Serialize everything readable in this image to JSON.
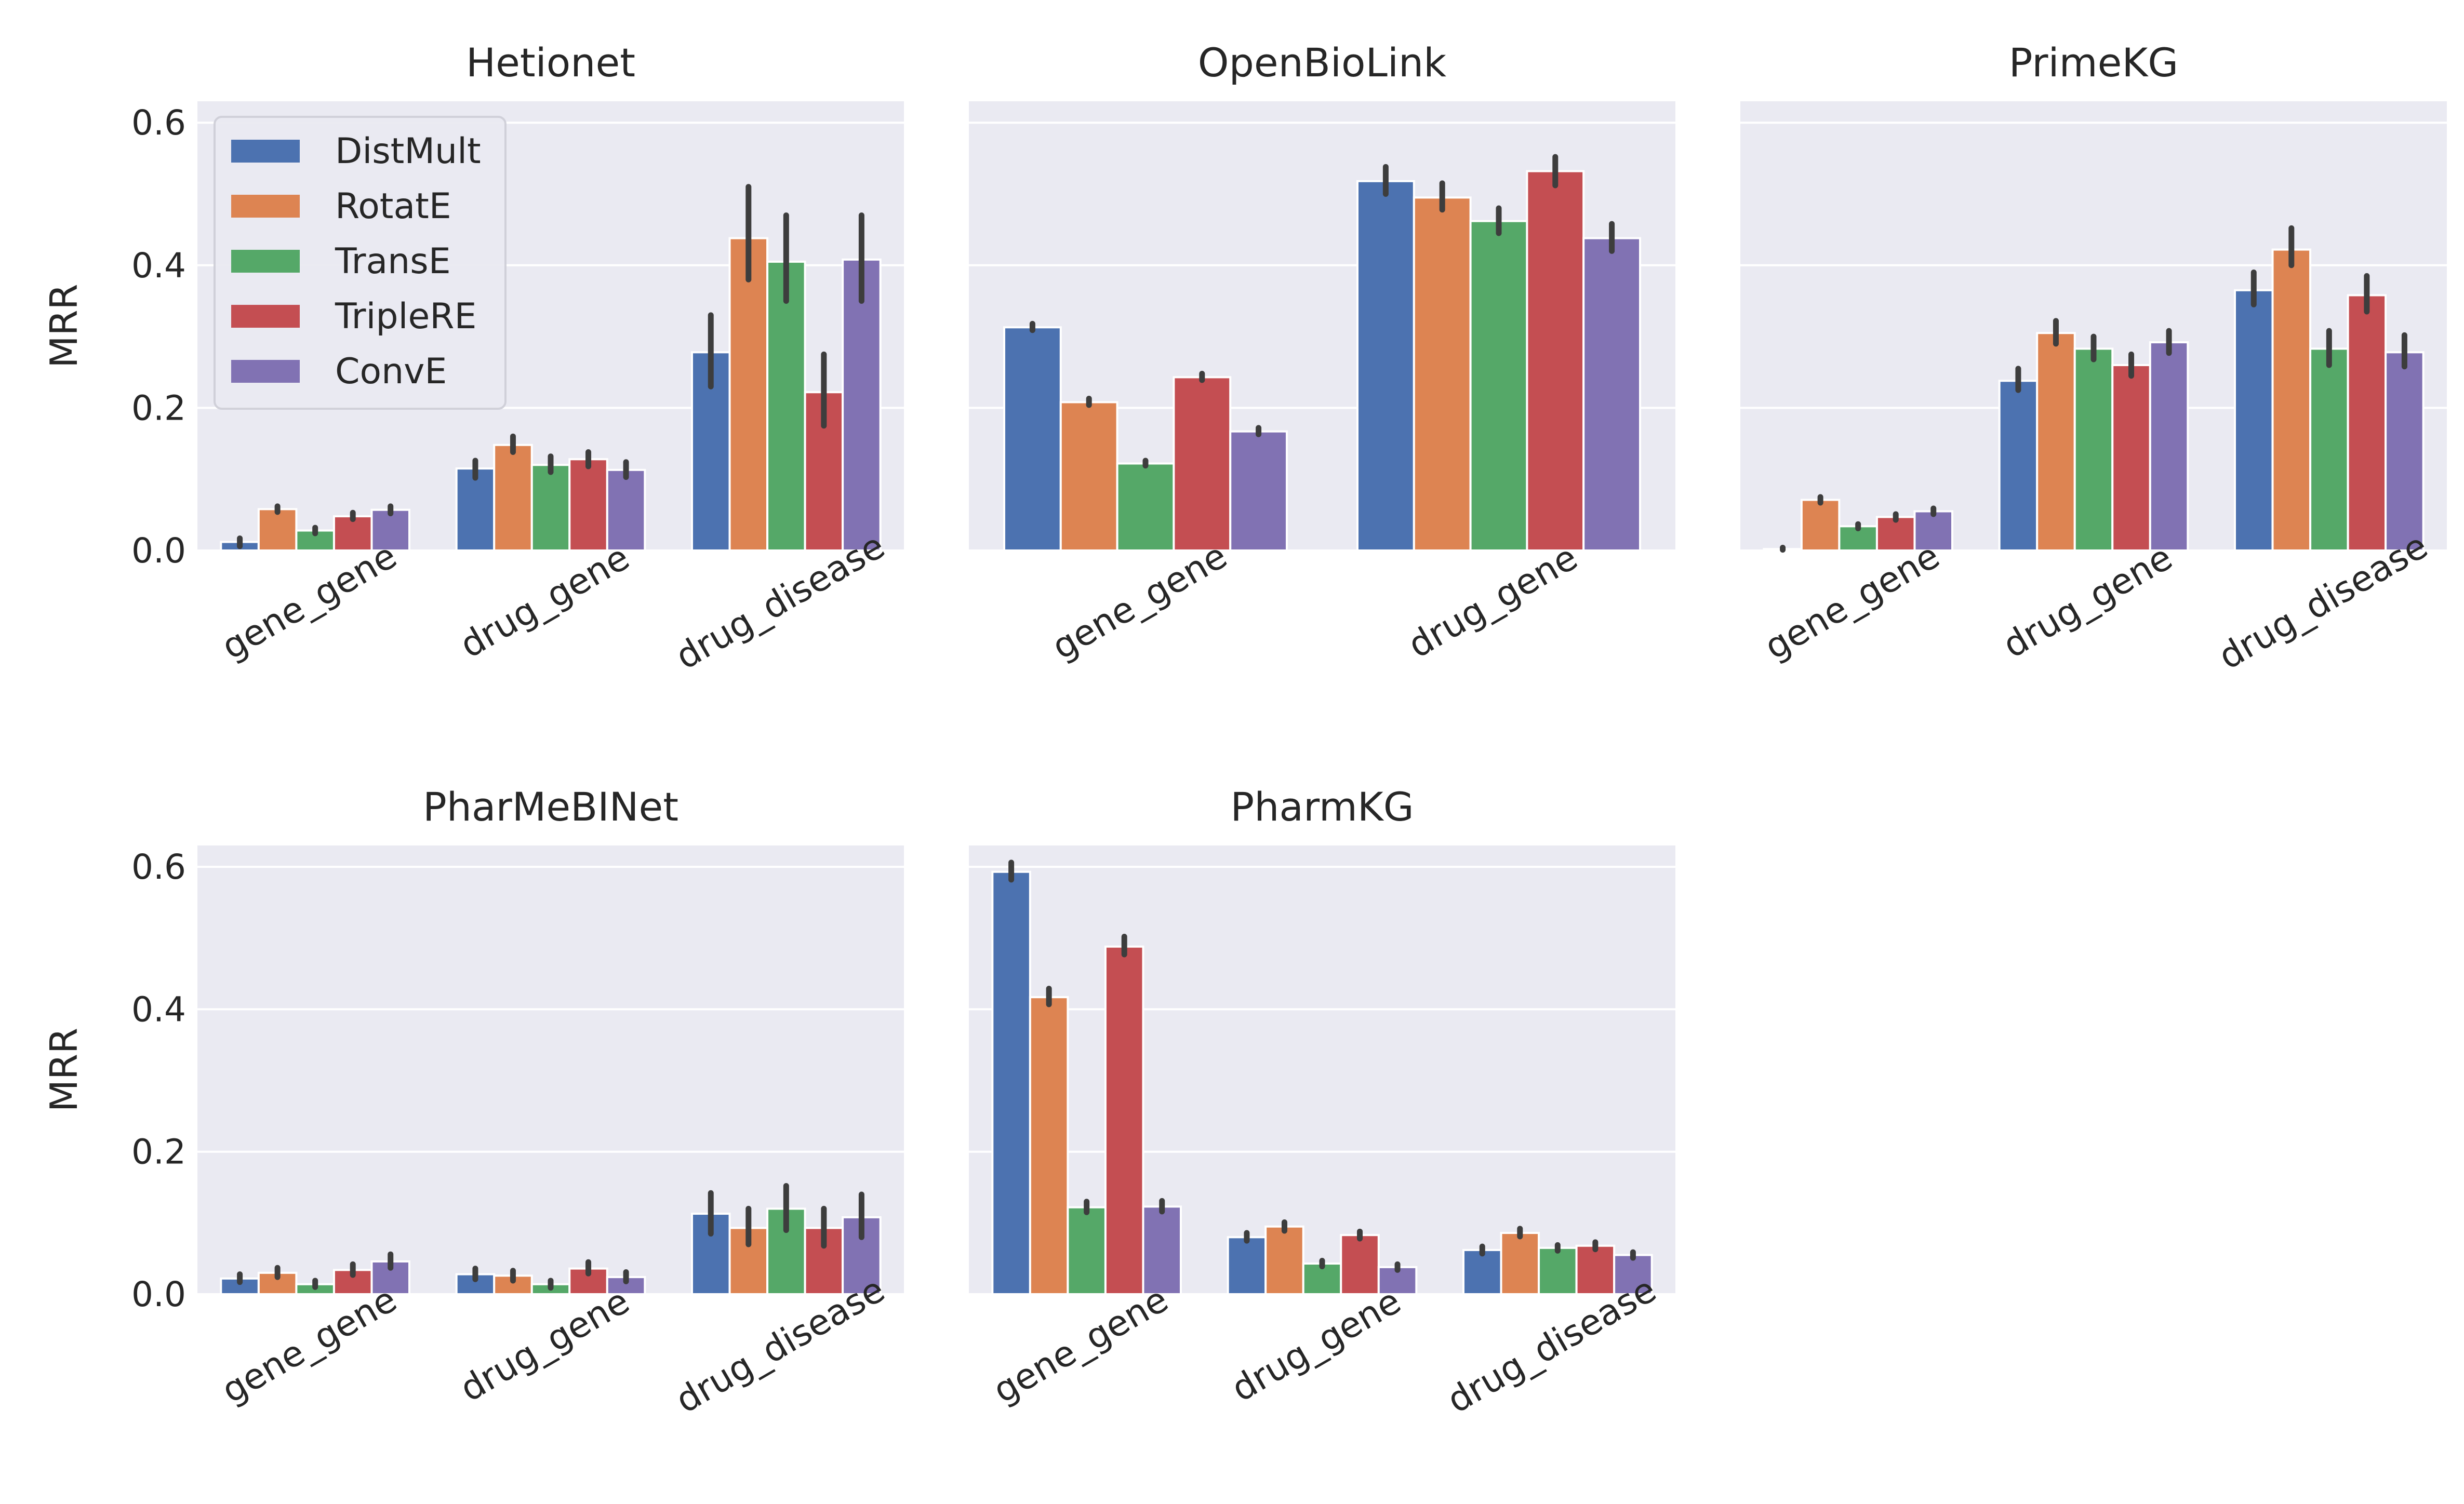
{
  "chart_data": {
    "type": "bar",
    "figure_kind": "faceted grouped bar chart with error bars",
    "ylabel": "MRR",
    "ylim": [
      0,
      0.63
    ],
    "yticks": [
      0.0,
      0.2,
      0.4,
      0.6
    ],
    "ytick_labels": [
      "0.0",
      "0.2",
      "0.4",
      "0.6"
    ],
    "grid": true,
    "legend": {
      "placement": "top-left of first panel",
      "entries": [
        "DistMult",
        "RotatE",
        "TransE",
        "TripleRE",
        "ConvE"
      ]
    },
    "series_colors": [
      "#4c72b0",
      "#dd8452",
      "#55a868",
      "#c44e52",
      "#8172b3"
    ],
    "panels": [
      {
        "title": "Hetionet",
        "categories": [
          "gene_gene",
          "drug_gene",
          "drug_disease"
        ],
        "series": [
          {
            "name": "DistMult",
            "values": [
              0.012,
              0.115,
              0.278
            ],
            "ci": [
              [
                0.006,
                0.017
              ],
              [
                0.102,
                0.126
              ],
              [
                0.23,
                0.33
              ]
            ]
          },
          {
            "name": "RotatE",
            "values": [
              0.058,
              0.148,
              0.438
            ],
            "ci": [
              [
                0.054,
                0.062
              ],
              [
                0.138,
                0.16
              ],
              [
                0.38,
                0.51
              ]
            ]
          },
          {
            "name": "TransE",
            "values": [
              0.028,
              0.12,
              0.405
            ],
            "ci": [
              [
                0.024,
                0.032
              ],
              [
                0.11,
                0.132
              ],
              [
                0.35,
                0.47
              ]
            ]
          },
          {
            "name": "TripleRE",
            "values": [
              0.048,
              0.128,
              0.222
            ],
            "ci": [
              [
                0.044,
                0.053
              ],
              [
                0.118,
                0.138
              ],
              [
                0.175,
                0.275
              ]
            ]
          },
          {
            "name": "ConvE",
            "values": [
              0.057,
              0.113,
              0.408
            ],
            "ci": [
              [
                0.052,
                0.062
              ],
              [
                0.103,
                0.124
              ],
              [
                0.35,
                0.47
              ]
            ]
          }
        ]
      },
      {
        "title": "OpenBioLink",
        "categories": [
          "gene_gene",
          "drug_gene"
        ],
        "series": [
          {
            "name": "DistMult",
            "values": [
              0.313,
              0.518
            ],
            "ci": [
              [
                0.309,
                0.318
              ],
              [
                0.5,
                0.538
              ]
            ]
          },
          {
            "name": "RotatE",
            "values": [
              0.208,
              0.495
            ],
            "ci": [
              [
                0.204,
                0.213
              ],
              [
                0.478,
                0.515
              ]
            ]
          },
          {
            "name": "TransE",
            "values": [
              0.122,
              0.462
            ],
            "ci": [
              [
                0.119,
                0.126
              ],
              [
                0.445,
                0.48
              ]
            ]
          },
          {
            "name": "TripleRE",
            "values": [
              0.243,
              0.532
            ],
            "ci": [
              [
                0.239,
                0.248
              ],
              [
                0.512,
                0.552
              ]
            ]
          },
          {
            "name": "ConvE",
            "values": [
              0.167,
              0.438
            ],
            "ci": [
              [
                0.163,
                0.172
              ],
              [
                0.42,
                0.458
              ]
            ]
          }
        ]
      },
      {
        "title": "PrimeKG",
        "categories": [
          "gene_gene",
          "drug_gene",
          "drug_disease"
        ],
        "series": [
          {
            "name": "DistMult",
            "values": [
              0.002,
              0.238,
              0.365
            ],
            "ci": [
              [
                0.001,
                0.004
              ],
              [
                0.225,
                0.255
              ],
              [
                0.345,
                0.39
              ]
            ]
          },
          {
            "name": "RotatE",
            "values": [
              0.071,
              0.305,
              0.422
            ],
            "ci": [
              [
                0.067,
                0.075
              ],
              [
                0.29,
                0.322
              ],
              [
                0.4,
                0.452
              ]
            ]
          },
          {
            "name": "TransE",
            "values": [
              0.034,
              0.283,
              0.283
            ],
            "ci": [
              [
                0.031,
                0.037
              ],
              [
                0.268,
                0.3
              ],
              [
                0.26,
                0.308
              ]
            ]
          },
          {
            "name": "TripleRE",
            "values": [
              0.047,
              0.26,
              0.358
            ],
            "ci": [
              [
                0.043,
                0.051
              ],
              [
                0.245,
                0.275
              ],
              [
                0.335,
                0.385
              ]
            ]
          },
          {
            "name": "ConvE",
            "values": [
              0.055,
              0.292,
              0.278
            ],
            "ci": [
              [
                0.051,
                0.059
              ],
              [
                0.277,
                0.308
              ],
              [
                0.258,
                0.302
              ]
            ]
          }
        ]
      },
      {
        "title": "PharMeBINet",
        "categories": [
          "gene_gene",
          "drug_gene",
          "drug_disease"
        ],
        "series": [
          {
            "name": "DistMult",
            "values": [
              0.022,
              0.028,
              0.113
            ],
            "ci": [
              [
                0.017,
                0.028
              ],
              [
                0.021,
                0.036
              ],
              [
                0.085,
                0.142
              ]
            ]
          },
          {
            "name": "RotatE",
            "values": [
              0.03,
              0.026,
              0.093
            ],
            "ci": [
              [
                0.024,
                0.037
              ],
              [
                0.019,
                0.033
              ],
              [
                0.07,
                0.12
              ]
            ]
          },
          {
            "name": "TransE",
            "values": [
              0.014,
              0.014,
              0.12
            ],
            "ci": [
              [
                0.01,
                0.019
              ],
              [
                0.009,
                0.019
              ],
              [
                0.09,
                0.152
              ]
            ]
          },
          {
            "name": "TripleRE",
            "values": [
              0.034,
              0.036,
              0.093
            ],
            "ci": [
              [
                0.027,
                0.042
              ],
              [
                0.029,
                0.045
              ],
              [
                0.068,
                0.12
              ]
            ]
          },
          {
            "name": "ConvE",
            "values": [
              0.046,
              0.024,
              0.108
            ],
            "ci": [
              [
                0.037,
                0.056
              ],
              [
                0.018,
                0.031
              ],
              [
                0.08,
                0.14
              ]
            ]
          }
        ]
      },
      {
        "title": "PharmKG",
        "categories": [
          "gene_gene",
          "drug_gene",
          "drug_disease"
        ],
        "series": [
          {
            "name": "DistMult",
            "values": [
              0.593,
              0.08,
              0.062
            ],
            "ci": [
              [
                0.582,
                0.606
              ],
              [
                0.075,
                0.086
              ],
              [
                0.057,
                0.067
              ]
            ]
          },
          {
            "name": "RotatE",
            "values": [
              0.417,
              0.095,
              0.086
            ],
            "ci": [
              [
                0.407,
                0.429
              ],
              [
                0.089,
                0.101
              ],
              [
                0.081,
                0.092
              ]
            ]
          },
          {
            "name": "TransE",
            "values": [
              0.122,
              0.043,
              0.065
            ],
            "ci": [
              [
                0.115,
                0.13
              ],
              [
                0.039,
                0.047
              ],
              [
                0.061,
                0.069
              ]
            ]
          },
          {
            "name": "TripleRE",
            "values": [
              0.488,
              0.083,
              0.068
            ],
            "ci": [
              [
                0.477,
                0.502
              ],
              [
                0.078,
                0.088
              ],
              [
                0.063,
                0.073
              ]
            ]
          },
          {
            "name": "ConvE",
            "values": [
              0.123,
              0.038,
              0.055
            ],
            "ci": [
              [
                0.116,
                0.131
              ],
              [
                0.034,
                0.042
              ],
              [
                0.051,
                0.059
              ]
            ]
          }
        ]
      }
    ]
  }
}
